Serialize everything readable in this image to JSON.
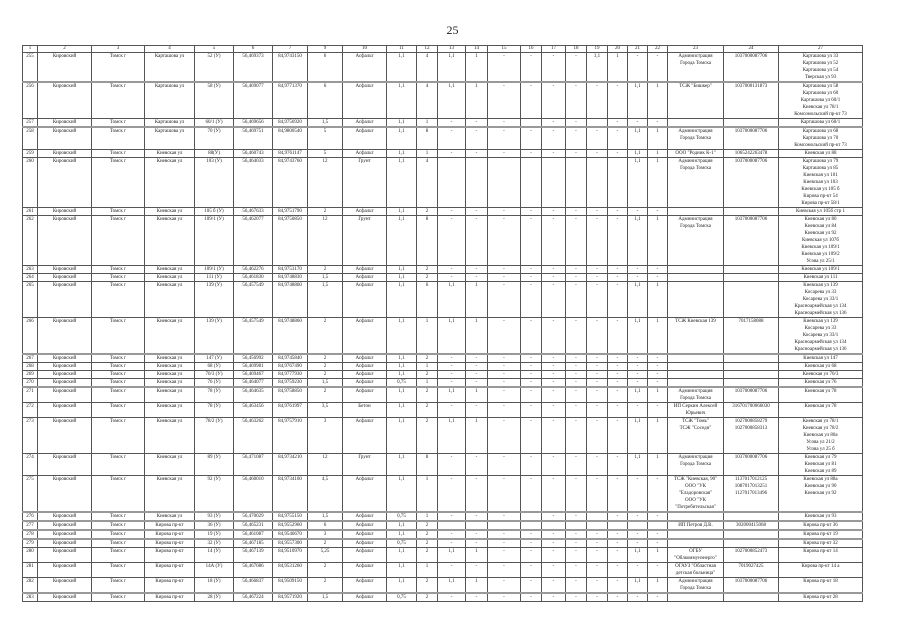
{
  "page_number": "25",
  "table": {
    "header": [
      "1",
      "2",
      "3",
      "4",
      "5",
      "6",
      "7",
      "9",
      "10",
      "11",
      "12",
      "13",
      "14",
      "15",
      "16",
      "17",
      "18",
      "19",
      "20",
      "21",
      "22",
      "23",
      "24",
      "27"
    ],
    "rows": [
      [
        "255",
        "Кировский",
        "Томск г",
        "Карташова ул",
        "52 (У)",
        "56,469373",
        "84,9743150",
        "6",
        "Асфальт",
        "1,1",
        "4",
        "1,1",
        "1",
        "-",
        "-",
        "-",
        "-",
        "1,1",
        "1",
        "-",
        "-",
        "Администрация\nГорода Томска",
        "1037000087706",
        "Карташова ул 33\nКарташова ул 52\nКарташова ул 54\nТверская ул 93"
      ],
      [
        "256",
        "Кировский",
        "Томск г",
        "Карташова ул",
        "58 (У)",
        "56,469077",
        "84,9771370",
        "6",
        "Асфальт",
        "1,1",
        "4",
        "1,1",
        "1",
        "-",
        "-",
        "-",
        "-",
        "-",
        "-",
        "1,1",
        "1",
        "ТСЖ \"Бишкер\"",
        "1037000131873",
        "Карташова ул 58\nКарташова ул 60\nКарташова ул 60/1\nКиевская ул 78/1\nКомсомольский пр-кт 73"
      ],
      [
        "257",
        "Кировский",
        "Томск г",
        "Карташова ул",
        "60/1 (У)",
        "56,469656",
        "84,9756920",
        "1,5",
        "Асфальт",
        "1,1",
        "1",
        "-",
        "-",
        "-",
        "",
        "-",
        "-",
        "",
        "-",
        "-",
        "-",
        "",
        "",
        "Карташова ул 60/1"
      ],
      [
        "258",
        "Кировский",
        "Томск г",
        "Карташова ул",
        "70 (У)",
        "56,469751",
        "84,9800540",
        "5",
        "Асфальт",
        "1,1",
        "8",
        "-",
        "-",
        "-",
        "-",
        "-",
        "-",
        "-",
        "-",
        "1,1",
        "1",
        "Администрация\nГорода Томска",
        "1037000087706",
        "Карташова ул 68\nКарташова ул 70\nКомсомольский пр-кт 73"
      ],
      [
        "259",
        "Кировский",
        "Томск г",
        "Киевская ул",
        "88(У)",
        "56,460743",
        "84,9761147",
        "5",
        "Асфальт",
        "1,1",
        "1",
        "-",
        "-",
        "-",
        "-",
        "-",
        "-",
        "-",
        "-",
        "1,1",
        "1",
        "ООО \"Родник К-1\"",
        "1065242263478",
        "Киевская ул 88"
      ],
      [
        "260",
        "Кировский",
        "Томск г",
        "Киевская ул",
        "103 (У)",
        "56,464033",
        "84,9743760",
        "12",
        "Грунт",
        "1,1",
        "4",
        "",
        "",
        "",
        "",
        "",
        "",
        "",
        "",
        "1,1",
        "1",
        "Администрация\nГорода Томска",
        "1037000087706",
        "Карташова ул 79\nКарташова ул 85\nКиевская ул 101\nКиевская ул 103\nКиевская ул 105 б\nКирова пр-кт 54\nКирова пр-кт 58/1"
      ],
      [
        "261",
        "Кировский",
        "Томск г",
        "Киевская ул",
        "105 б (У)",
        "56,467633",
        "84,9751790",
        "2",
        "Асфальт",
        "1,1",
        "2",
        "-",
        "-",
        "-",
        "-",
        "-",
        "-",
        "-",
        "-",
        "-",
        "-",
        "",
        "",
        "Киевская ул 105б стр 1"
      ],
      [
        "262",
        "Кировский",
        "Томск г",
        "Киевская ул",
        "109/1 (У)",
        "56,462077",
        "84,9750850",
        "12",
        "Грунт",
        "1,1",
        "8",
        "-",
        "-",
        "-",
        "-",
        "-",
        "-",
        "-",
        "-",
        "1,1",
        "1",
        "Администрация\nГорода Томска",
        "1037000087706",
        "Киевская ул 80\nКиевская ул 84\nКиевская ул 92\nКиевская ул 107б\nКиевская ул 109/1\nКиевская ул 109/2\nУсова ул 25/1"
      ],
      [
        "263",
        "Кировский",
        "Томск г",
        "Киевская ул",
        "109/1 (У)",
        "56,462276",
        "84,9753170",
        "2",
        "Асфальт",
        "1,1",
        "2",
        "-",
        "-",
        "-",
        "-",
        "-",
        "-",
        "-",
        "-",
        "-",
        "-",
        "",
        "",
        "Киевская ул 109/1"
      ],
      [
        "264",
        "Кировский",
        "Томск г",
        "Киевская ул",
        "111 (У)",
        "56,461830",
        "84,9748830",
        "1,5",
        "Асфальт",
        "1,1",
        "2",
        "-",
        "-",
        "-",
        "-",
        "-",
        "-",
        "-",
        "-",
        "-",
        "-",
        "",
        "",
        "Киевская ул 111"
      ],
      [
        "265",
        "Кировский",
        "Томск г",
        "Киевская ул",
        "139 (У)",
        "56,457549",
        "84,9748860",
        "1,5",
        "Асфальт",
        "1,1",
        "6",
        "1,1",
        "1",
        "-",
        "-",
        "-",
        "-",
        "-",
        "-",
        "1,1",
        "1",
        "",
        "",
        "Киевская ул 139\nКосарева ул 33\nКосарева ул 33/1\nКрасноармейская ул 134\nКрасноармейская ул 136"
      ],
      [
        "266",
        "Кировский",
        "Томск г",
        "Киевская ул",
        "139 (У)",
        "56,457549",
        "84,9748860",
        "2",
        "Асфальт",
        "1,1",
        "1",
        "1,1",
        "1",
        "-",
        "-",
        "-",
        "-",
        "-",
        "-",
        "1,1",
        "1",
        "ТСЖ Киевская 139",
        "7017158088",
        "Киевская ул 139\nКосарева ул 33\nКосарева ул 33/1\nКрасноармейская ул 134\nКрасноармейская ул 136"
      ],
      [
        "267",
        "Кировский",
        "Томск г",
        "Киевская ул",
        "147 (У)",
        "56,456992",
        "84,9745840",
        "2",
        "Асфальт",
        "1,1",
        "2",
        "-",
        "-",
        "-",
        "-",
        "-",
        "-",
        "-",
        "-",
        "-",
        "-",
        "",
        "",
        "Киевская ул 147"
      ],
      [
        "268",
        "Кировский",
        "Томск г",
        "Киевская ул",
        "68 (У)",
        "56,469981",
        "84,9767490",
        "2",
        "Асфальт",
        "1,1",
        "1",
        "-",
        "-",
        "-",
        "-",
        "-",
        "-",
        "-",
        "-",
        "-",
        "-",
        "",
        "",
        "Киевская ул 68"
      ],
      [
        "269",
        "Кировский",
        "Томск г",
        "Киевская ул",
        "70/3 (У)",
        "56,469467",
        "84,9777930",
        "2",
        "Асфальт",
        "1,1",
        "2",
        "-",
        "-",
        "-",
        "-",
        "-",
        "-",
        "-",
        "-",
        "-",
        "-",
        "",
        "",
        "Киевская ул 70/3"
      ],
      [
        "270",
        "Кировский",
        "Томск г",
        "Киевская ул",
        "76 (У)",
        "56,464077",
        "84,9759230",
        "1,5",
        "Асфальт",
        "0,75",
        "1",
        "-",
        "-",
        "-",
        "-",
        "-",
        "-",
        "-",
        "-",
        "-",
        "-",
        "",
        "",
        "Киевская ул 76"
      ],
      [
        "271",
        "Кировский",
        "Томск г",
        "Киевская ул",
        "78 (У)",
        "56,464635",
        "84,9758850",
        "2",
        "Асфальт",
        "1,1",
        "2",
        "1,1",
        "1",
        "-",
        "-",
        "-",
        "-",
        "-",
        "-",
        "1,1",
        "1",
        "Администрация\nГорода Томска",
        "1037000087706",
        "Киевская ул 78"
      ],
      [
        "272",
        "Кировский",
        "Томск г",
        "Киевская ул",
        "78 (У)",
        "56,463456",
        "84,9761997",
        "3,5",
        "Бетон",
        "1,1",
        "2",
        "-",
        "-",
        "-",
        "-",
        "-",
        "-",
        "-",
        "-",
        "-",
        "-",
        "ИП Серкин Алексей\nЮрьевич",
        "316701700066030",
        "Киевская ул 78"
      ],
      [
        "273",
        "Кировский",
        "Томск г",
        "Киевская ул",
        "78/2 (У)",
        "56,463262",
        "84,9757910",
        "3",
        "Асфальт",
        "1,1",
        "2",
        "1,1",
        "1",
        "-",
        "-",
        "-",
        "-",
        "-",
        "-",
        "1,1",
        "1",
        "ТСЖ \"Томь\"\nТСЖ \"Соседи\"",
        "1027000858279\n1027000858313",
        "Киевская ул 78/1\nКиевская ул 78/2\nКиевская ул 80а\nУсова ул 21/2\nУсова ул 25 б"
      ],
      [
        "274",
        "Кировский",
        "Томск г",
        "Киевская ул",
        "89 (У)",
        "56,471087",
        "84,9734210",
        "12",
        "Грунт",
        "1,1",
        "8",
        "-",
        "-",
        "-",
        "-",
        "-",
        "-",
        "-",
        "-",
        "1,1",
        "1",
        "Администрация\nГорода Томска",
        "1037000087706",
        "Киевская ул 79\nКиевская ул 81\nКиевская ул 89"
      ],
      [
        "275",
        "Кировский",
        "Томск г",
        "Киевская ул",
        "92 (У)",
        "56,460010",
        "84,9734160",
        "4,5",
        "Асфальт",
        "1,1",
        "1",
        "-",
        "-",
        "-",
        "-",
        "-",
        "-",
        "-",
        "-",
        "-",
        "-",
        "ТСЖ \"Киевская, 90\"\nООО \"УК\n\"Еладоровская\"\nООО \"УК\n\"Потребительская\"",
        "1137017012125\n1087017013251\n1127017013496",
        "Киевская ул 88а\nКиевская ул 90\nКиевская ул 92"
      ],
      [
        "276",
        "Кировский",
        "Томск г",
        "Киевская ул",
        "93 (У)",
        "56,470029",
        "84,9755150",
        "1,5",
        "Асфальт",
        "0,75",
        "1",
        "-",
        "-",
        "-",
        "",
        "-",
        "-",
        "",
        "-",
        "-",
        "-",
        "",
        "",
        "Киевская ул 93"
      ],
      [
        "277",
        "Кировский",
        "Томск г",
        "Кирова пр-кт",
        "36 (У)",
        "56,465231",
        "84,9552960",
        "6",
        "Асфальт",
        "1,1",
        "2",
        "",
        "",
        "",
        "",
        "",
        "",
        "",
        "",
        "",
        "",
        "ИП Петров Д.В.",
        "302000415068",
        "Кирова пр-кт 36"
      ],
      [
        "278",
        "Кировский",
        "Томск г",
        "Кирова пр-кт",
        "19 (У)",
        "56,461087",
        "84,9546670",
        "3",
        "Асфальт",
        "1,1",
        "2",
        "-",
        "-",
        "-",
        "-",
        "-",
        "-",
        "-",
        "-",
        "-",
        "-",
        "",
        "",
        "Кирова пр-кт 19"
      ],
      [
        "279",
        "Кировский",
        "Томск г",
        "Кирова пр-кт",
        "32 (У)",
        "56,467185",
        "84,9557300",
        "2",
        "Асфальт",
        "0,75",
        "2",
        "-",
        "-",
        "-",
        "-",
        "-",
        "-",
        "-",
        "-",
        "-",
        "-",
        "",
        "",
        "Кирова пр-кт 32"
      ],
      [
        "280",
        "Кировский",
        "Томск г",
        "Кирова пр-кт",
        "14 (У)",
        "56,467139",
        "84,9510970",
        "5,25",
        "Асфальт",
        "1,1",
        "2",
        "1,1",
        "1",
        "-",
        "-",
        "-",
        "-",
        "-",
        "-",
        "1,1",
        "1",
        "ОГБУ\n\"Облкоммунэнерго\"",
        "1027000852473",
        "Кирова пр-кт 14"
      ],
      [
        "281",
        "Кировский",
        "Томск г",
        "Кирова пр-кт",
        "14А (У)",
        "56,467086",
        "84,9531260",
        "2",
        "Асфальт",
        "1,1",
        "1",
        "-",
        "-",
        "-",
        "-",
        "-",
        "-",
        "-",
        "-",
        "-",
        "-",
        "ОГАУЗ \"Областная\nдетская больница\"",
        "7019027425",
        "Кирова пр-кт 14 а"
      ],
      [
        "282",
        "Кировский",
        "Томск г",
        "Кирова пр-кт",
        "18 (У)",
        "56,466837",
        "84,9509150",
        "2",
        "Асфальт",
        "1,1",
        "2",
        "1,1",
        "1",
        "-",
        "-",
        "-",
        "-",
        "-",
        "-",
        "1,1",
        "1",
        "Администрация\nГорода Томска",
        "1037000087706",
        "Кирова пр-кт 18"
      ],
      [
        "283",
        "Кировский",
        "Томск г",
        "Кирова пр-кт",
        "28 (У)",
        "56,467224",
        "84,9571920",
        "1,5",
        "Асфальт",
        "0,75",
        "2",
        "-",
        "-",
        "-",
        "-",
        "-",
        "-",
        "-",
        "-",
        "-",
        "-",
        "",
        "",
        "Кирова пр-кт 28"
      ]
    ]
  }
}
